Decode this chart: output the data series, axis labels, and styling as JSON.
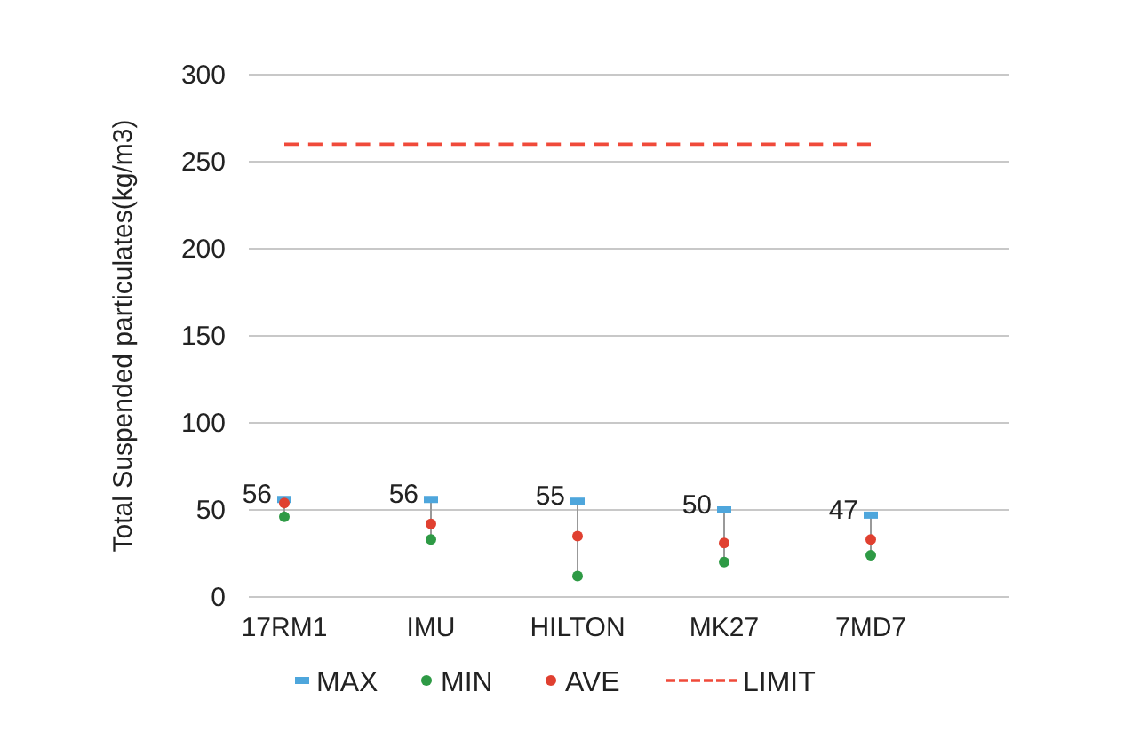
{
  "chart_data": {
    "type": "scatter",
    "ylabel": "Total Suspended particulates(kg/m3)",
    "categories": [
      "17RM1",
      "IMU",
      "HILTON",
      "MK27",
      "7MD7"
    ],
    "ylim": [
      0,
      300
    ],
    "yticks": [
      0,
      50,
      100,
      150,
      200,
      250,
      300
    ],
    "grid": "y",
    "legend": "bottom",
    "series": [
      {
        "name": "MAX",
        "color": "#4ea6dc",
        "values": [
          56,
          56,
          55,
          50,
          47
        ],
        "value_labels": [
          "56",
          "56",
          "55",
          "50",
          "47"
        ]
      },
      {
        "name": "MIN",
        "marker": "circle",
        "color": "#2e9a45",
        "values": [
          46,
          33,
          12,
          20,
          24
        ]
      },
      {
        "name": "AVE",
        "marker": "circle",
        "color": "#e04030",
        "values": [
          54,
          42,
          35,
          31,
          33
        ]
      },
      {
        "name": "LIMIT",
        "type": "line",
        "marker": "none",
        "line_style": "dashed",
        "color": "#f04a3a",
        "values": [
          260,
          260,
          260,
          260,
          260
        ]
      }
    ]
  }
}
